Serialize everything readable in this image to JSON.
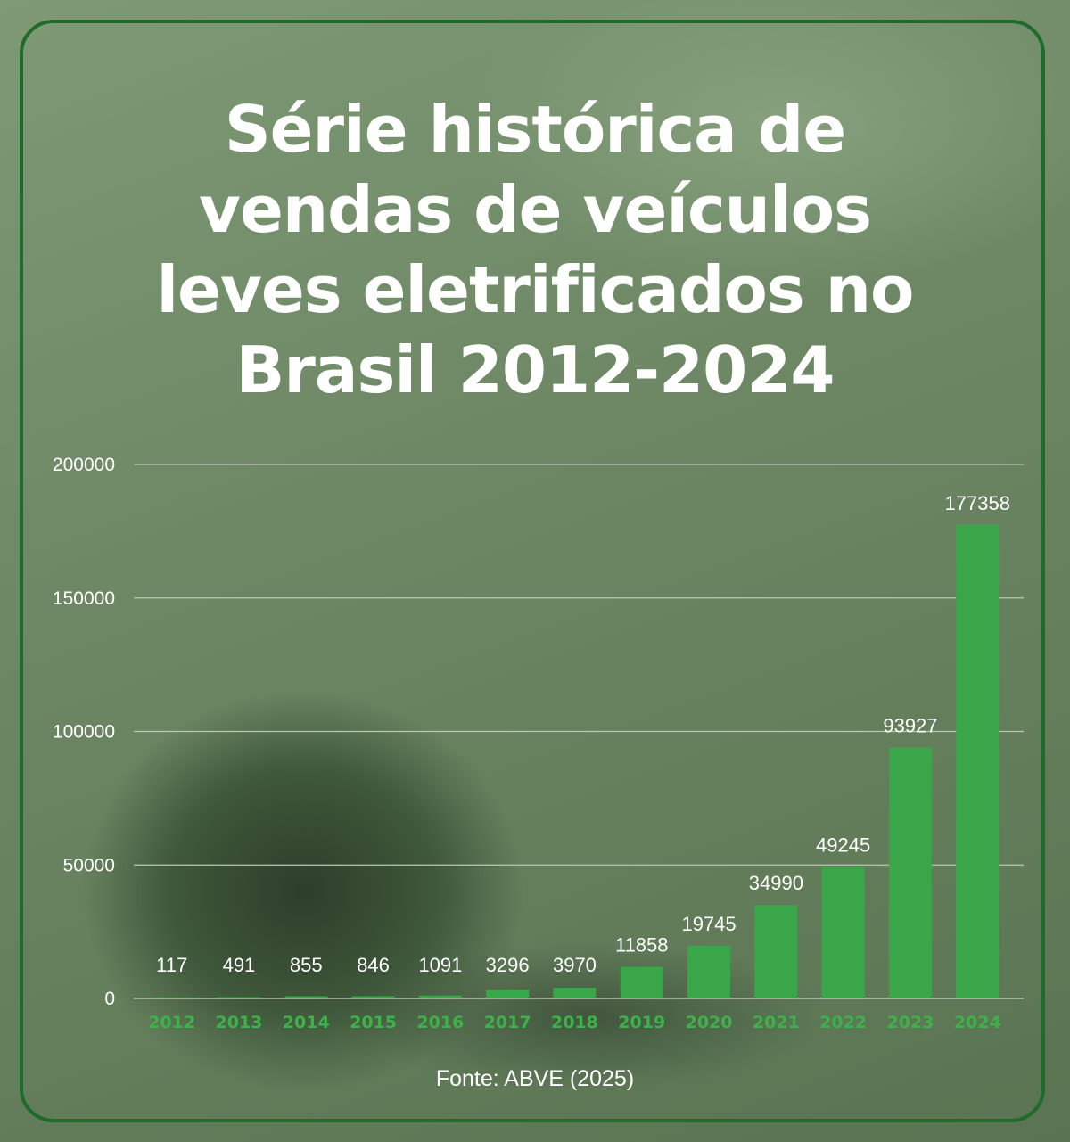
{
  "title_lines": [
    "Série histórica de",
    "vendas de veículos",
    "leves eletrificados no",
    "Brasil 2012-2024"
  ],
  "source": "Fonte: ABVE (2025)",
  "colors": {
    "bar": "#3aa64a",
    "x_tick": "#3db14a",
    "frame": "#1e6b2a",
    "text": "#ffffff"
  },
  "chart_data": {
    "type": "bar",
    "title": "Série histórica de vendas de veículos leves eletrificados no Brasil 2012-2024",
    "xlabel": "",
    "ylabel": "",
    "ylim": [
      0,
      200000
    ],
    "yticks": [
      0,
      50000,
      100000,
      150000,
      200000
    ],
    "grid": true,
    "categories": [
      "2012",
      "2013",
      "2014",
      "2015",
      "2016",
      "2017",
      "2018",
      "2019",
      "2020",
      "2021",
      "2022",
      "2023",
      "2024"
    ],
    "values": [
      117,
      491,
      855,
      846,
      1091,
      3296,
      3970,
      11858,
      19745,
      34990,
      49245,
      93927,
      177358
    ]
  }
}
